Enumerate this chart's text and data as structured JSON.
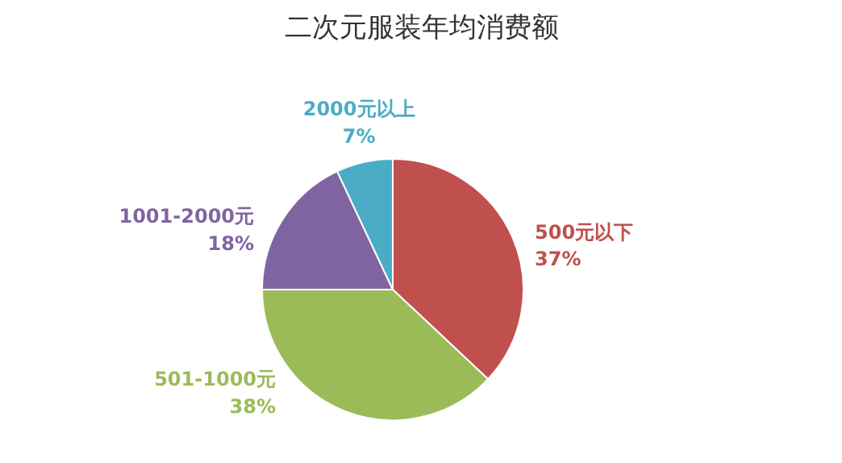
{
  "chart_data": {
    "type": "pie",
    "title": "二次元服装年均消费额",
    "categories": [
      "500元以下",
      "501-1000元",
      "1001-2000元",
      "2000元以上"
    ],
    "values": [
      37,
      38,
      18,
      7
    ],
    "colors": [
      "#c0504d",
      "#9bbb59",
      "#8064a2",
      "#4bacc6"
    ],
    "value_labels": [
      "37%",
      "38%",
      "18%",
      "7%"
    ]
  }
}
